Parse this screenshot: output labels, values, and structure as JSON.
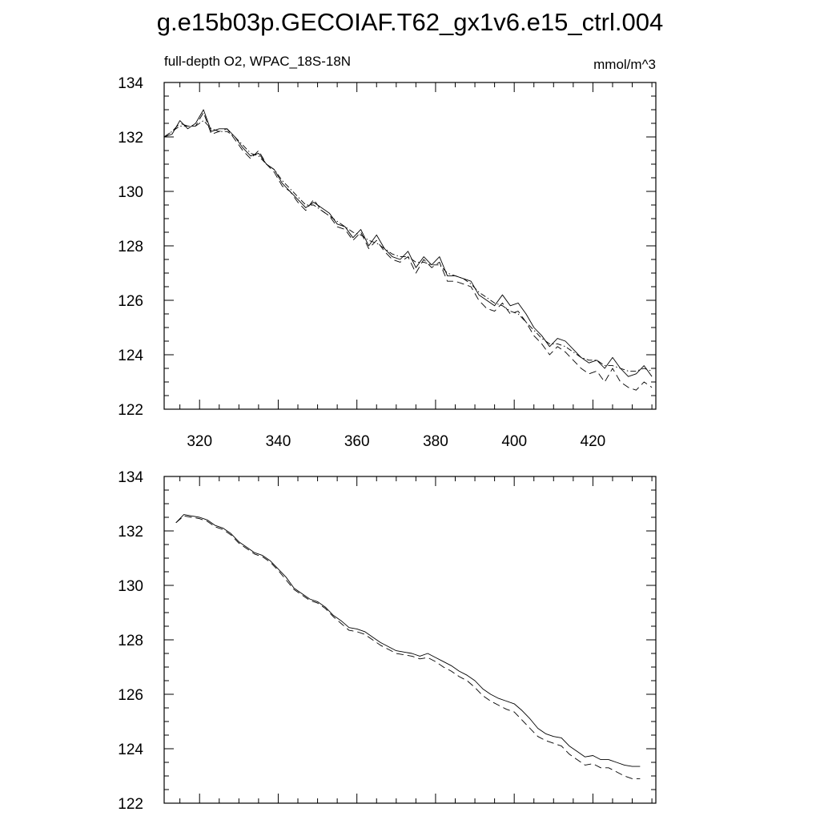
{
  "figure": {
    "title": "g.e15b03p.GECOIAF.T62_gx1v6.e15_ctrl.004"
  },
  "chart_data": [
    {
      "type": "line",
      "title": "",
      "subtitle_left": "full-depth O2, WPAC_18S-18N",
      "subtitle_right": "mmol/m^3",
      "xlabel": "",
      "ylabel": "",
      "xlim": [
        311,
        436
      ],
      "ylim": [
        122,
        134
      ],
      "xticks": [
        320,
        340,
        360,
        380,
        400,
        420
      ],
      "yticks": [
        122,
        124,
        126,
        128,
        130,
        132,
        134
      ],
      "show_xtick_labels": true,
      "grid": false,
      "legend": "none",
      "x": [
        311,
        313,
        315,
        317,
        319,
        321,
        323,
        325,
        327,
        329,
        331,
        333,
        335,
        337,
        339,
        341,
        343,
        345,
        347,
        349,
        351,
        353,
        355,
        357,
        359,
        361,
        363,
        365,
        367,
        369,
        371,
        373,
        375,
        377,
        379,
        381,
        383,
        385,
        387,
        389,
        391,
        393,
        395,
        397,
        399,
        401,
        403,
        405,
        407,
        409,
        411,
        413,
        415,
        417,
        419,
        421,
        423,
        425,
        427,
        429,
        431,
        433,
        435
      ],
      "series": [
        {
          "style": "solid",
          "values": [
            132.0,
            132.1,
            132.6,
            132.3,
            132.5,
            133.0,
            132.2,
            132.3,
            132.3,
            132.0,
            131.6,
            131.3,
            131.4,
            131.0,
            130.8,
            130.3,
            130.0,
            129.7,
            129.4,
            129.6,
            129.4,
            129.2,
            128.8,
            128.7,
            128.3,
            128.6,
            128.0,
            128.4,
            127.9,
            127.6,
            127.5,
            127.8,
            127.2,
            127.6,
            127.3,
            127.6,
            126.9,
            126.9,
            126.8,
            126.7,
            126.2,
            126.0,
            125.8,
            126.2,
            125.8,
            125.9,
            125.5,
            125.0,
            124.7,
            124.3,
            124.6,
            124.5,
            124.2,
            123.9,
            123.7,
            123.8,
            123.5,
            123.9,
            123.5,
            123.2,
            123.3,
            123.6,
            123.2
          ]
        },
        {
          "style": "dashed",
          "values": [
            132.0,
            132.2,
            132.5,
            132.4,
            132.4,
            132.9,
            132.1,
            132.2,
            132.3,
            131.9,
            131.5,
            131.2,
            131.5,
            131.0,
            130.7,
            130.2,
            130.0,
            129.6,
            129.3,
            129.7,
            129.3,
            129.1,
            128.7,
            128.6,
            128.2,
            128.5,
            127.9,
            128.2,
            127.8,
            127.5,
            127.4,
            127.6,
            127.0,
            127.5,
            127.2,
            127.4,
            126.7,
            126.7,
            126.6,
            126.5,
            126.0,
            125.7,
            125.6,
            125.9,
            125.5,
            125.6,
            125.2,
            124.7,
            124.4,
            124.0,
            124.3,
            124.1,
            123.8,
            123.5,
            123.3,
            123.4,
            123.0,
            123.5,
            123.0,
            122.8,
            122.7,
            123.0,
            122.8
          ]
        },
        {
          "style": "dash-dot",
          "values": [
            132.0,
            132.2,
            132.4,
            132.4,
            132.4,
            132.6,
            132.3,
            132.2,
            132.2,
            132.0,
            131.7,
            131.4,
            131.3,
            131.0,
            130.8,
            130.4,
            130.1,
            129.8,
            129.5,
            129.5,
            129.3,
            129.1,
            128.9,
            128.7,
            128.5,
            128.4,
            128.2,
            128.1,
            127.9,
            127.7,
            127.6,
            127.6,
            127.4,
            127.4,
            127.3,
            127.3,
            127.0,
            126.9,
            126.8,
            126.6,
            126.3,
            126.1,
            125.9,
            125.8,
            125.6,
            125.5,
            125.2,
            124.9,
            124.6,
            124.4,
            124.4,
            124.3,
            124.1,
            123.9,
            123.8,
            123.8,
            123.6,
            123.6,
            123.5,
            123.4,
            123.4,
            123.5,
            123.4
          ]
        }
      ]
    },
    {
      "type": "line",
      "title": "",
      "xlabel": "",
      "ylabel": "",
      "xlim": [
        311,
        436
      ],
      "ylim": [
        122,
        134
      ],
      "xticks": [
        320,
        340,
        360,
        380,
        400,
        420
      ],
      "yticks": [
        122,
        124,
        126,
        128,
        130,
        132,
        134
      ],
      "show_xtick_labels": false,
      "grid": false,
      "legend": "none",
      "x": [
        314,
        316,
        318,
        320,
        322,
        324,
        326,
        328,
        330,
        332,
        334,
        336,
        338,
        340,
        342,
        344,
        346,
        348,
        350,
        352,
        354,
        356,
        358,
        360,
        362,
        364,
        366,
        368,
        370,
        372,
        374,
        376,
        378,
        380,
        382,
        384,
        386,
        388,
        390,
        392,
        394,
        396,
        398,
        400,
        402,
        404,
        406,
        408,
        410,
        412,
        414,
        416,
        418,
        420,
        422,
        424,
        426,
        428,
        430,
        432
      ],
      "series": [
        {
          "style": "solid",
          "values": [
            132.3,
            132.6,
            132.55,
            132.5,
            132.4,
            132.2,
            132.1,
            131.9,
            131.6,
            131.4,
            131.2,
            131.1,
            130.9,
            130.6,
            130.3,
            129.9,
            129.7,
            129.5,
            129.4,
            129.2,
            128.9,
            128.7,
            128.45,
            128.4,
            128.3,
            128.1,
            127.9,
            127.75,
            127.6,
            127.55,
            127.5,
            127.4,
            127.5,
            127.35,
            127.2,
            127.05,
            126.85,
            126.7,
            126.5,
            126.2,
            126.0,
            125.85,
            125.75,
            125.65,
            125.4,
            125.1,
            124.75,
            124.55,
            124.45,
            124.4,
            124.1,
            123.9,
            123.7,
            123.75,
            123.6,
            123.6,
            123.5,
            123.4,
            123.35,
            123.35
          ]
        },
        {
          "style": "dashed",
          "values": [
            132.3,
            132.55,
            132.5,
            132.45,
            132.35,
            132.15,
            132.05,
            131.85,
            131.55,
            131.35,
            131.15,
            131.05,
            130.85,
            130.55,
            130.2,
            129.85,
            129.65,
            129.45,
            129.35,
            129.15,
            128.85,
            128.6,
            128.35,
            128.3,
            128.2,
            128.0,
            127.8,
            127.65,
            127.5,
            127.45,
            127.4,
            127.3,
            127.35,
            127.2,
            127.0,
            126.85,
            126.65,
            126.5,
            126.25,
            125.95,
            125.75,
            125.6,
            125.45,
            125.35,
            125.05,
            124.75,
            124.45,
            124.3,
            124.2,
            124.1,
            123.8,
            123.6,
            123.4,
            123.45,
            123.3,
            123.3,
            123.15,
            123.0,
            122.9,
            122.9
          ]
        }
      ]
    }
  ]
}
